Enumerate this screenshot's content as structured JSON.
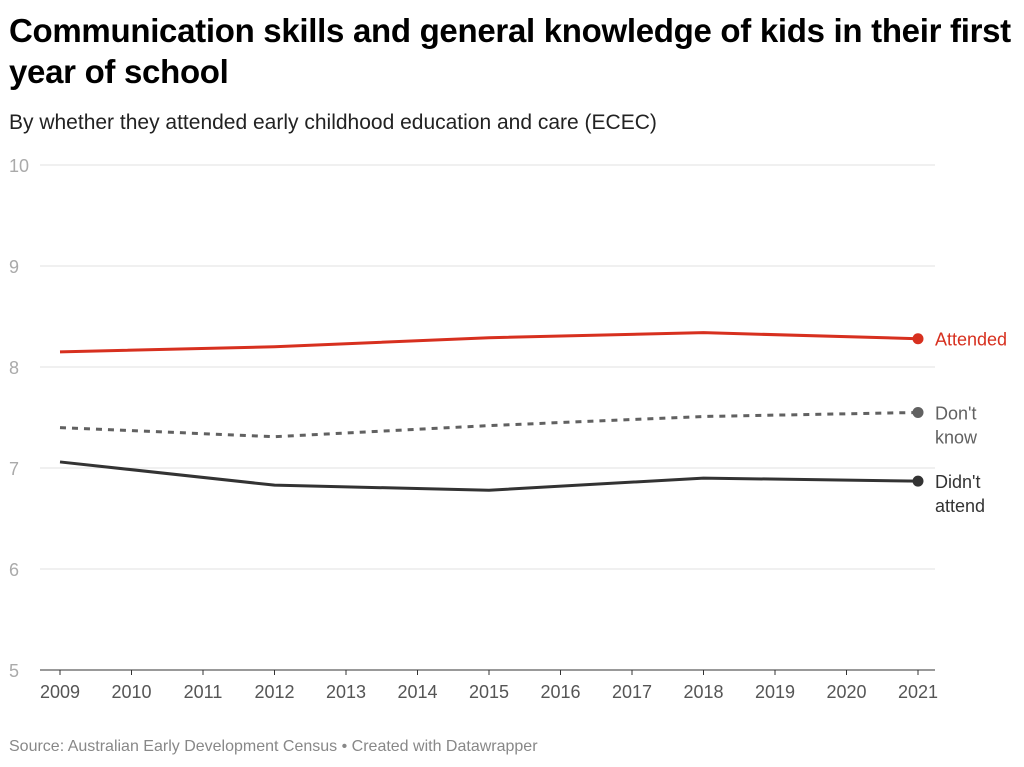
{
  "chart_data": {
    "type": "line",
    "title": "Communication skills and general knowledge of kids in their first year of school",
    "subtitle": "By whether they attended early childhood education and care (ECEC)",
    "xlabel": "",
    "ylabel": "",
    "x": [
      2009,
      2012,
      2015,
      2018,
      2021
    ],
    "x_ticks": [
      "2009",
      "2010",
      "2011",
      "2012",
      "2013",
      "2014",
      "2015",
      "2016",
      "2017",
      "2018",
      "2019",
      "2020",
      "2021"
    ],
    "y_ticks": [
      "5",
      "6",
      "7",
      "8",
      "9",
      "10"
    ],
    "ylim": [
      5,
      10
    ],
    "xlim": [
      2009,
      2021
    ],
    "grid": "horizontal",
    "legend": "direct labels at right end",
    "series": [
      {
        "name": "Attended",
        "values": [
          8.15,
          8.2,
          8.29,
          8.34,
          8.28
        ],
        "color": "#d7301f",
        "style": "solid"
      },
      {
        "name": "Don't know",
        "values": [
          7.4,
          7.31,
          7.42,
          7.51,
          7.55
        ],
        "color": "#616161",
        "style": "dashed"
      },
      {
        "name": "Didn't attend",
        "values": [
          7.06,
          6.83,
          6.78,
          6.9,
          6.87
        ],
        "color": "#333333",
        "style": "solid"
      }
    ],
    "series_labels": [
      [
        "Attended"
      ],
      [
        "Don't",
        "know"
      ],
      [
        "Didn't",
        "attend"
      ]
    ],
    "source": "Source: Australian Early Development Census • Created with Datawrapper"
  }
}
